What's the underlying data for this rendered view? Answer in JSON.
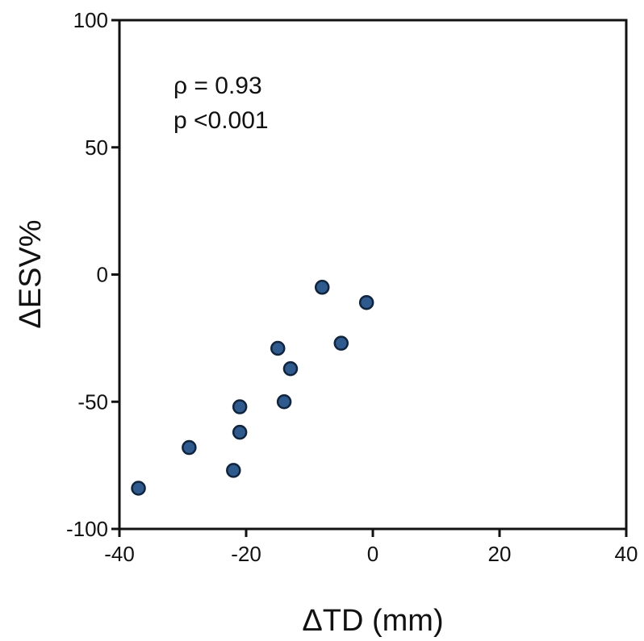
{
  "chart_data": {
    "type": "scatter",
    "xlabel": "ΔTD (mm)",
    "ylabel": "ΔESV%",
    "xlim": [
      -40,
      40
    ],
    "ylim": [
      -100,
      100
    ],
    "x_ticks": [
      -40,
      -20,
      0,
      20,
      40
    ],
    "y_ticks": [
      -100,
      -50,
      0,
      50,
      100
    ],
    "grid": false,
    "annotations": [
      "ρ = 0.93",
      "p <0.001"
    ],
    "point_color": "#2e5a8e",
    "points": [
      {
        "x": -37,
        "y": -84
      },
      {
        "x": -29,
        "y": -68
      },
      {
        "x": -22,
        "y": -77
      },
      {
        "x": -21,
        "y": -62
      },
      {
        "x": -21,
        "y": -52
      },
      {
        "x": -15,
        "y": -29
      },
      {
        "x": -14,
        "y": -50
      },
      {
        "x": -13,
        "y": -37
      },
      {
        "x": -8,
        "y": -5
      },
      {
        "x": -5,
        "y": -27
      },
      {
        "x": -1,
        "y": -11
      }
    ]
  }
}
